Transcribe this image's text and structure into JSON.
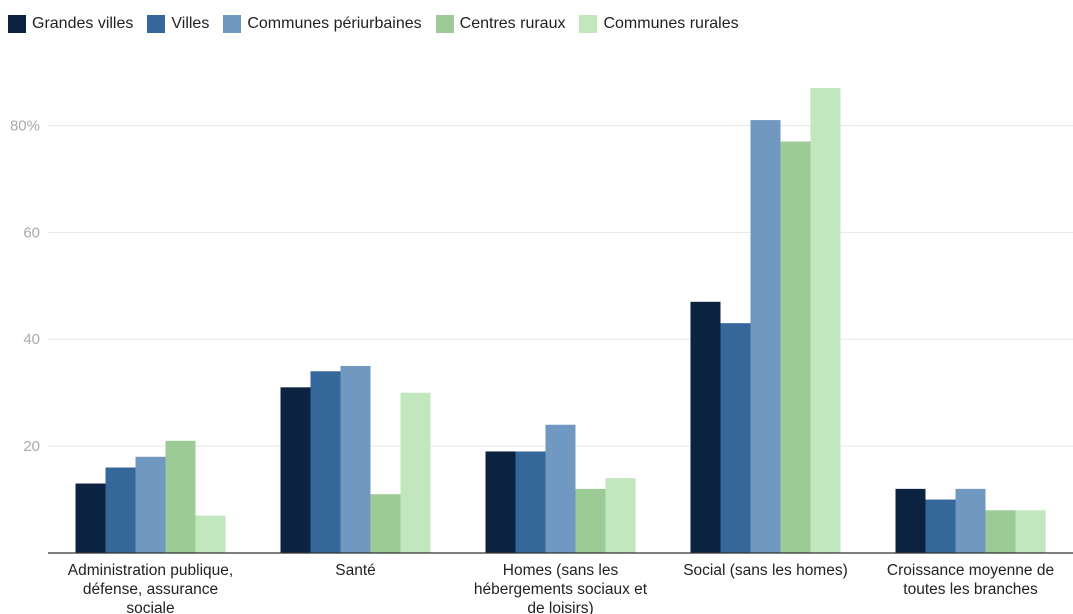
{
  "chart_data": {
    "type": "bar",
    "categories": [
      [
        "Administration publique,",
        "défense, assurance",
        "sociale"
      ],
      [
        "Santé"
      ],
      [
        "Homes (sans les",
        "hébergements sociaux et",
        "de loisirs)"
      ],
      [
        "Social (sans les homes)"
      ],
      [
        "Croissance moyenne de",
        "toutes les branches"
      ]
    ],
    "series": [
      {
        "name": "Grandes villes",
        "color": "#0b2240",
        "values": [
          13,
          31,
          19,
          47,
          12
        ]
      },
      {
        "name": "Villes",
        "color": "#35679a",
        "values": [
          16,
          34,
          19,
          43,
          10
        ]
      },
      {
        "name": "Communes périurbaines",
        "color": "#7198c1",
        "values": [
          18,
          35,
          24,
          81,
          12
        ]
      },
      {
        "name": "Centres ruraux",
        "color": "#9dcb96",
        "values": [
          21,
          11,
          12,
          77,
          8
        ]
      },
      {
        "name": "Communes rurales",
        "color": "#c2e6bd",
        "values": [
          7,
          30,
          14,
          87,
          8
        ]
      }
    ],
    "ylim": [
      0,
      90
    ],
    "yticks": [
      {
        "value": 20,
        "label": "20"
      },
      {
        "value": 40,
        "label": "40"
      },
      {
        "value": 60,
        "label": "60"
      },
      {
        "value": 80,
        "label": "80%"
      }
    ],
    "grid": true,
    "legend_position": "top-left",
    "title": "",
    "xlabel": "",
    "ylabel": ""
  }
}
